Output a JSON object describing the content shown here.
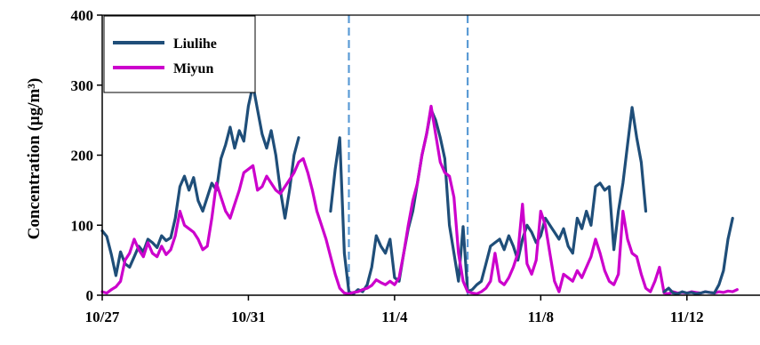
{
  "chart_data": {
    "type": "line",
    "title": "",
    "xlabel": "",
    "ylabel": "Concentration (μg/m³)",
    "ylim": [
      0,
      400
    ],
    "yticks": [
      0,
      100,
      200,
      300,
      400
    ],
    "xlim": [
      "10/27",
      "11/14"
    ],
    "xtick_labels": [
      "10/27",
      "10/31",
      "11/4",
      "11/8",
      "11/12"
    ],
    "grid": false,
    "legend": "top-left",
    "vertical_markers": [
      "11/2 18:00",
      "11/6 00:00"
    ],
    "series": [
      {
        "name": "Liulihe",
        "color": "#1f4e79",
        "points": [
          [
            "10/27 00:00",
            92
          ],
          [
            "10/27 03:00",
            84
          ],
          [
            "10/27 06:00",
            58
          ],
          [
            "10/27 09:00",
            28
          ],
          [
            "10/27 12:00",
            62
          ],
          [
            "10/27 15:00",
            45
          ],
          [
            "10/27 18:00",
            40
          ],
          [
            "10/27 21:00",
            55
          ],
          [
            "10/28 00:00",
            70
          ],
          [
            "10/28 03:00",
            62
          ],
          [
            "10/28 06:00",
            80
          ],
          [
            "10/28 09:00",
            75
          ],
          [
            "10/28 12:00",
            68
          ],
          [
            "10/28 15:00",
            85
          ],
          [
            "10/28 18:00",
            78
          ],
          [
            "10/28 21:00",
            82
          ],
          [
            "10/29 00:00",
            110
          ],
          [
            "10/29 03:00",
            155
          ],
          [
            "10/29 06:00",
            170
          ],
          [
            "10/29 09:00",
            150
          ],
          [
            "10/29 12:00",
            168
          ],
          [
            "10/29 15:00",
            135
          ],
          [
            "10/29 18:00",
            120
          ],
          [
            "10/29 21:00",
            140
          ],
          [
            "10/30 00:00",
            160
          ],
          [
            "10/30 03:00",
            150
          ],
          [
            "10/30 06:00",
            195
          ],
          [
            "10/30 09:00",
            215
          ],
          [
            "10/30 12:00",
            240
          ],
          [
            "10/30 15:00",
            210
          ],
          [
            "10/30 18:00",
            235
          ],
          [
            "10/30 21:00",
            220
          ],
          [
            "10/31 00:00",
            270
          ],
          [
            "10/31 03:00",
            300
          ],
          [
            "10/31 06:00",
            265
          ],
          [
            "10/31 09:00",
            230
          ],
          [
            "10/31 12:00",
            210
          ],
          [
            "10/31 15:00",
            235
          ],
          [
            "10/31 18:00",
            200
          ],
          [
            "10/31 21:00",
            150
          ],
          [
            "11/1 00:00",
            110
          ],
          [
            "11/1 03:00",
            150
          ],
          [
            "11/1 06:00",
            200
          ],
          [
            "11/1 09:00",
            225
          ],
          [
            "11/1 12:00",
            null
          ],
          [
            "11/2 06:00",
            120
          ],
          [
            "11/2 09:00",
            180
          ],
          [
            "11/2 12:00",
            225
          ],
          [
            "11/2 15:00",
            60
          ],
          [
            "11/2 18:00",
            5
          ],
          [
            "11/2 21:00",
            2
          ],
          [
            "11/3 00:00",
            8
          ],
          [
            "11/3 03:00",
            5
          ],
          [
            "11/3 06:00",
            15
          ],
          [
            "11/3 09:00",
            40
          ],
          [
            "11/3 12:00",
            85
          ],
          [
            "11/3 15:00",
            70
          ],
          [
            "11/3 18:00",
            60
          ],
          [
            "11/3 21:00",
            80
          ],
          [
            "11/4 00:00",
            25
          ],
          [
            "11/4 03:00",
            20
          ],
          [
            "11/4 06:00",
            60
          ],
          [
            "11/4 09:00",
            95
          ],
          [
            "11/4 12:00",
            120
          ],
          [
            "11/4 15:00",
            160
          ],
          [
            "11/4 18:00",
            200
          ],
          [
            "11/4 21:00",
            230
          ],
          [
            "11/5 00:00",
            265
          ],
          [
            "11/5 03:00",
            250
          ],
          [
            "11/5 06:00",
            225
          ],
          [
            "11/5 09:00",
            195
          ],
          [
            "11/5 12:00",
            100
          ],
          [
            "11/5 15:00",
            60
          ],
          [
            "11/5 18:00",
            20
          ],
          [
            "11/5 21:00",
            98
          ],
          [
            "11/6 00:00",
            5
          ],
          [
            "11/6 03:00",
            8
          ],
          [
            "11/6 06:00",
            15
          ],
          [
            "11/6 09:00",
            20
          ],
          [
            "11/6 12:00",
            45
          ],
          [
            "11/6 15:00",
            70
          ],
          [
            "11/6 18:00",
            75
          ],
          [
            "11/6 21:00",
            80
          ],
          [
            "11/7 00:00",
            65
          ],
          [
            "11/7 03:00",
            85
          ],
          [
            "11/7 06:00",
            70
          ],
          [
            "11/7 09:00",
            50
          ],
          [
            "11/7 12:00",
            80
          ],
          [
            "11/7 15:00",
            100
          ],
          [
            "11/7 18:00",
            90
          ],
          [
            "11/7 21:00",
            75
          ],
          [
            "11/8 00:00",
            85
          ],
          [
            "11/8 03:00",
            110
          ],
          [
            "11/8 06:00",
            100
          ],
          [
            "11/8 09:00",
            90
          ],
          [
            "11/8 12:00",
            80
          ],
          [
            "11/8 15:00",
            95
          ],
          [
            "11/8 18:00",
            70
          ],
          [
            "11/8 21:00",
            60
          ],
          [
            "11/9 00:00",
            110
          ],
          [
            "11/9 03:00",
            95
          ],
          [
            "11/9 06:00",
            120
          ],
          [
            "11/9 09:00",
            100
          ],
          [
            "11/9 12:00",
            155
          ],
          [
            "11/9 15:00",
            160
          ],
          [
            "11/9 18:00",
            150
          ],
          [
            "11/9 21:00",
            155
          ],
          [
            "11/10 00:00",
            65
          ],
          [
            "11/10 03:00",
            120
          ],
          [
            "11/10 06:00",
            160
          ],
          [
            "11/10 09:00",
            215
          ],
          [
            "11/10 12:00",
            268
          ],
          [
            "11/10 15:00",
            225
          ],
          [
            "11/10 18:00",
            190
          ],
          [
            "11/10 21:00",
            120
          ]
        ]
      },
      {
        "name": "Miyun",
        "color": "#cc00cc",
        "points": [
          [
            "10/27 00:00",
            5
          ],
          [
            "10/27 03:00",
            3
          ],
          [
            "10/27 06:00",
            8
          ],
          [
            "10/27 09:00",
            12
          ],
          [
            "10/27 12:00",
            20
          ],
          [
            "10/27 15:00",
            50
          ],
          [
            "10/27 18:00",
            60
          ],
          [
            "10/27 21:00",
            80
          ],
          [
            "10/28 00:00",
            65
          ],
          [
            "10/28 03:00",
            55
          ],
          [
            "10/28 06:00",
            75
          ],
          [
            "10/28 09:00",
            60
          ],
          [
            "10/28 12:00",
            55
          ],
          [
            "10/28 15:00",
            70
          ],
          [
            "10/28 18:00",
            58
          ],
          [
            "10/28 21:00",
            65
          ],
          [
            "10/29 00:00",
            85
          ],
          [
            "10/29 03:00",
            120
          ],
          [
            "10/29 06:00",
            100
          ],
          [
            "10/29 09:00",
            95
          ],
          [
            "10/29 12:00",
            90
          ],
          [
            "10/29 15:00",
            80
          ],
          [
            "10/29 18:00",
            65
          ],
          [
            "10/29 21:00",
            70
          ],
          [
            "10/30 00:00",
            110
          ],
          [
            "10/30 03:00",
            160
          ],
          [
            "10/30 06:00",
            140
          ],
          [
            "10/30 09:00",
            120
          ],
          [
            "10/30 12:00",
            110
          ],
          [
            "10/30 15:00",
            130
          ],
          [
            "10/30 18:00",
            150
          ],
          [
            "10/30 21:00",
            175
          ],
          [
            "10/31 00:00",
            180
          ],
          [
            "10/31 03:00",
            185
          ],
          [
            "10/31 06:00",
            150
          ],
          [
            "10/31 09:00",
            155
          ],
          [
            "10/31 12:00",
            170
          ],
          [
            "10/31 15:00",
            160
          ],
          [
            "10/31 18:00",
            150
          ],
          [
            "10/31 21:00",
            145
          ],
          [
            "11/1 00:00",
            155
          ],
          [
            "11/1 03:00",
            165
          ],
          [
            "11/1 06:00",
            175
          ],
          [
            "11/1 09:00",
            190
          ],
          [
            "11/1 12:00",
            195
          ],
          [
            "11/1 15:00",
            175
          ],
          [
            "11/1 18:00",
            150
          ],
          [
            "11/1 21:00",
            120
          ],
          [
            "11/2 00:00",
            100
          ],
          [
            "11/2 03:00",
            80
          ],
          [
            "11/2 06:00",
            55
          ],
          [
            "11/2 09:00",
            30
          ],
          [
            "11/2 12:00",
            10
          ],
          [
            "11/2 15:00",
            3
          ],
          [
            "11/2 18:00",
            2
          ],
          [
            "11/2 21:00",
            4
          ],
          [
            "11/3 00:00",
            5
          ],
          [
            "11/3 03:00",
            8
          ],
          [
            "11/3 06:00",
            10
          ],
          [
            "11/3 09:00",
            14
          ],
          [
            "11/3 12:00",
            22
          ],
          [
            "11/3 15:00",
            18
          ],
          [
            "11/3 18:00",
            15
          ],
          [
            "11/3 21:00",
            20
          ],
          [
            "11/4 00:00",
            15
          ],
          [
            "11/4 03:00",
            25
          ],
          [
            "11/4 06:00",
            60
          ],
          [
            "11/4 09:00",
            100
          ],
          [
            "11/4 12:00",
            135
          ],
          [
            "11/4 15:00",
            160
          ],
          [
            "11/4 18:00",
            200
          ],
          [
            "11/4 21:00",
            230
          ],
          [
            "11/5 00:00",
            270
          ],
          [
            "11/5 03:00",
            230
          ],
          [
            "11/5 06:00",
            190
          ],
          [
            "11/5 09:00",
            175
          ],
          [
            "11/5 12:00",
            170
          ],
          [
            "11/5 15:00",
            140
          ],
          [
            "11/5 18:00",
            60
          ],
          [
            "11/5 21:00",
            20
          ],
          [
            "11/6 00:00",
            5
          ],
          [
            "11/6 03:00",
            3
          ],
          [
            "11/6 06:00",
            2
          ],
          [
            "11/6 09:00",
            5
          ],
          [
            "11/6 12:00",
            10
          ],
          [
            "11/6 15:00",
            20
          ],
          [
            "11/6 18:00",
            60
          ],
          [
            "11/6 21:00",
            20
          ],
          [
            "11/7 00:00",
            15
          ],
          [
            "11/7 03:00",
            25
          ],
          [
            "11/7 06:00",
            40
          ],
          [
            "11/7 09:00",
            60
          ],
          [
            "11/7 12:00",
            130
          ],
          [
            "11/7 15:00",
            45
          ],
          [
            "11/7 18:00",
            30
          ],
          [
            "11/7 21:00",
            50
          ],
          [
            "11/8 00:00",
            120
          ],
          [
            "11/8 03:00",
            100
          ],
          [
            "11/8 06:00",
            60
          ],
          [
            "11/8 09:00",
            20
          ],
          [
            "11/8 12:00",
            5
          ],
          [
            "11/8 15:00",
            30
          ],
          [
            "11/8 18:00",
            25
          ],
          [
            "11/8 21:00",
            20
          ],
          [
            "11/9 00:00",
            35
          ],
          [
            "11/9 03:00",
            25
          ],
          [
            "11/9 06:00",
            40
          ],
          [
            "11/9 09:00",
            55
          ],
          [
            "11/9 12:00",
            80
          ],
          [
            "11/9 15:00",
            60
          ],
          [
            "11/9 18:00",
            35
          ],
          [
            "11/9 21:00",
            20
          ],
          [
            "11/10 00:00",
            15
          ],
          [
            "11/10 03:00",
            30
          ],
          [
            "11/10 06:00",
            120
          ],
          [
            "11/10 09:00",
            80
          ],
          [
            "11/10 12:00",
            60
          ],
          [
            "11/10 15:00",
            55
          ],
          [
            "11/10 18:00",
            30
          ],
          [
            "11/10 21:00",
            10
          ],
          [
            "11/11 00:00",
            5
          ],
          [
            "11/11 03:00",
            20
          ],
          [
            "11/11 06:00",
            40
          ],
          [
            "11/11 09:00",
            3
          ],
          [
            "11/11 12:00",
            2
          ],
          [
            "11/11 15:00",
            5
          ],
          [
            "11/11 18:00",
            3
          ],
          [
            "11/11 21:00",
            4
          ],
          [
            "11/12 00:00",
            3
          ],
          [
            "11/12 03:00",
            5
          ],
          [
            "11/12 06:00",
            4
          ],
          [
            "11/12 09:00",
            3
          ],
          [
            "11/12 12:00",
            5
          ],
          [
            "11/12 15:00",
            4
          ],
          [
            "11/12 18:00",
            3
          ],
          [
            "11/12 21:00",
            5
          ],
          [
            "11/13 00:00",
            4
          ],
          [
            "11/13 03:00",
            6
          ],
          [
            "11/13 06:00",
            5
          ],
          [
            "11/13 09:00",
            8
          ]
        ]
      },
      {
        "name": "",
        "legend": false,
        "color": "#1f4e79",
        "points": [
          [
            "11/11 09:00",
            5
          ],
          [
            "11/11 12:00",
            10
          ],
          [
            "11/11 15:00",
            3
          ],
          [
            "11/11 18:00",
            2
          ],
          [
            "11/11 21:00",
            5
          ],
          [
            "11/12 00:00",
            3
          ],
          [
            "11/12 03:00",
            4
          ],
          [
            "11/12 06:00",
            2
          ],
          [
            "11/12 09:00",
            3
          ],
          [
            "11/12 12:00",
            5
          ],
          [
            "11/12 15:00",
            4
          ],
          [
            "11/12 18:00",
            3
          ],
          [
            "11/12 21:00",
            15
          ],
          [
            "11/13 00:00",
            35
          ],
          [
            "11/13 03:00",
            80
          ],
          [
            "11/13 06:00",
            110
          ]
        ]
      }
    ]
  }
}
